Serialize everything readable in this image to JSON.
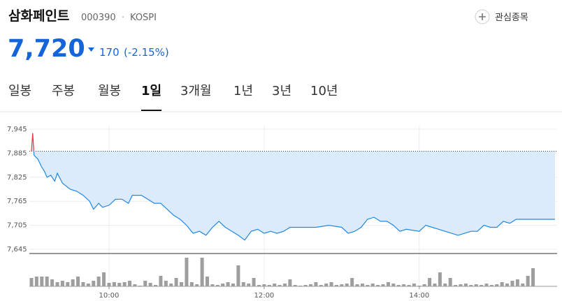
{
  "header": {
    "name": "삼화페인트",
    "code": "000390",
    "separator": "·",
    "market": "KOSPI",
    "watch_label": "관심종목"
  },
  "price": {
    "current": "7,720",
    "change": "170",
    "change_pct": "(-2.15%)"
  },
  "tabs": {
    "items": [
      "일봉",
      "주봉",
      "월봉",
      "1일",
      "3개월",
      "1년",
      "3년",
      "10년"
    ],
    "active": 3
  },
  "chart_data": {
    "type": "line",
    "color": "#1e88e5",
    "up_color": "#e53935",
    "fill": "#dcebfb",
    "prev_close": 7890,
    "x": [
      "09:00",
      "09:01",
      "09:02",
      "09:05",
      "09:08",
      "09:10",
      "09:12",
      "09:15",
      "09:18",
      "09:20",
      "09:24",
      "09:30",
      "09:35",
      "09:40",
      "09:45",
      "09:48",
      "09:52",
      "09:55",
      "10:00",
      "10:05",
      "10:10",
      "10:15",
      "10:18",
      "10:25",
      "10:30",
      "10:35",
      "10:40",
      "10:45",
      "10:50",
      "10:55",
      "11:00",
      "11:05",
      "11:10",
      "11:15",
      "11:20",
      "11:25",
      "11:30",
      "11:35",
      "11:40",
      "11:45",
      "11:50",
      "11:55",
      "12:00",
      "12:05",
      "12:10",
      "12:15",
      "12:20",
      "12:30",
      "12:40",
      "12:50",
      "13:00",
      "13:05",
      "13:10",
      "13:15",
      "13:20",
      "13:25",
      "13:30",
      "13:35",
      "13:40",
      "13:45",
      "13:50",
      "14:00",
      "14:05",
      "14:10",
      "14:15",
      "14:20",
      "14:25",
      "14:30",
      "14:35",
      "14:40",
      "14:45",
      "14:50",
      "14:55",
      "15:00",
      "15:05",
      "15:10",
      "15:15",
      "15:45"
    ],
    "values": [
      7890,
      7935,
      7880,
      7870,
      7850,
      7840,
      7825,
      7830,
      7815,
      7835,
      7810,
      7795,
      7790,
      7780,
      7765,
      7745,
      7760,
      7750,
      7755,
      7770,
      7770,
      7760,
      7780,
      7780,
      7770,
      7760,
      7760,
      7745,
      7730,
      7720,
      7705,
      7685,
      7690,
      7680,
      7700,
      7715,
      7700,
      7690,
      7680,
      7668,
      7690,
      7695,
      7685,
      7690,
      7685,
      7690,
      7700,
      7700,
      7700,
      7705,
      7700,
      7685,
      7690,
      7700,
      7720,
      7725,
      7715,
      7715,
      7705,
      7690,
      7695,
      7690,
      7705,
      7700,
      7695,
      7690,
      7685,
      7680,
      7685,
      7690,
      7690,
      7705,
      7700,
      7700,
      7715,
      7710,
      7720,
      7720
    ],
    "ylim": [
      7645,
      7945
    ],
    "yticks": [
      {
        "value": 7645,
        "label": "7,645"
      },
      {
        "value": 7705,
        "label": "7,705"
      },
      {
        "value": 7765,
        "label": "7,765"
      },
      {
        "value": 7825,
        "label": "7,825"
      },
      {
        "value": 7885,
        "label": "7,885"
      },
      {
        "value": 7945,
        "label": "7,945"
      }
    ],
    "xlim": [
      "09:00",
      "15:45"
    ],
    "xticks": [
      "10:00",
      "12:00",
      "14:00"
    ],
    "grid": true,
    "volume": {
      "color": "#9e9e9e",
      "x": [
        "09:00",
        "09:04",
        "09:08",
        "09:12",
        "09:16",
        "09:20",
        "09:24",
        "09:28",
        "09:32",
        "09:36",
        "09:40",
        "09:44",
        "09:48",
        "09:52",
        "09:56",
        "10:00",
        "10:04",
        "10:08",
        "10:12",
        "10:16",
        "10:20",
        "10:24",
        "10:28",
        "10:32",
        "10:36",
        "10:40",
        "10:44",
        "10:48",
        "10:52",
        "10:56",
        "11:00",
        "11:04",
        "11:08",
        "11:12",
        "11:16",
        "11:20",
        "11:24",
        "11:28",
        "11:32",
        "11:36",
        "11:40",
        "11:44",
        "11:48",
        "11:52",
        "11:56",
        "12:00",
        "12:04",
        "12:08",
        "12:12",
        "12:16",
        "12:20",
        "12:24",
        "12:28",
        "12:32",
        "12:36",
        "12:40",
        "12:44",
        "12:48",
        "12:52",
        "12:56",
        "13:00",
        "13:04",
        "13:08",
        "13:12",
        "13:16",
        "13:20",
        "13:24",
        "13:28",
        "13:32",
        "13:36",
        "13:40",
        "13:44",
        "13:48",
        "13:52",
        "13:56",
        "14:00",
        "14:04",
        "14:08",
        "14:12",
        "14:16",
        "14:20",
        "14:24",
        "14:28",
        "14:32",
        "14:36",
        "14:40",
        "14:44",
        "14:48",
        "14:52",
        "14:56",
        "15:00",
        "15:04",
        "15:08",
        "15:12",
        "15:16",
        "15:20",
        "15:24",
        "15:28"
      ],
      "values": [
        12,
        14,
        14,
        14,
        10,
        6,
        8,
        6,
        10,
        14,
        6,
        4,
        8,
        14,
        20,
        5,
        6,
        5,
        6,
        8,
        3,
        1,
        8,
        5,
        2,
        15,
        8,
        4,
        12,
        6,
        41,
        6,
        3,
        41,
        14,
        3,
        2,
        4,
        6,
        4,
        30,
        6,
        4,
        12,
        2,
        3,
        2,
        4,
        2,
        4,
        10,
        2,
        1,
        2,
        3,
        6,
        2,
        4,
        6,
        2,
        3,
        4,
        12,
        3,
        4,
        2,
        4,
        2,
        3,
        6,
        4,
        2,
        3,
        2,
        4,
        1,
        3,
        12,
        4,
        20,
        4,
        12,
        2,
        3,
        4,
        2,
        3,
        2,
        4,
        2,
        3,
        6,
        4,
        8,
        10,
        4,
        15,
        26
      ]
    }
  }
}
